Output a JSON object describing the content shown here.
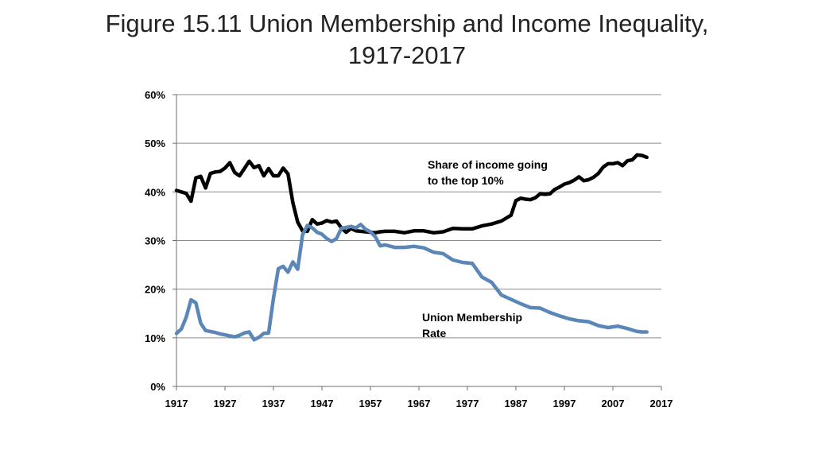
{
  "title": {
    "line1": "Figure 15.11 Union Membership and Income Inequality,",
    "line2": "1917-2017"
  },
  "colors": {
    "income_share": "#000000",
    "union_rate": "#5b86b8",
    "grid": "#8c8c8c",
    "axis": "#6e6e6e"
  },
  "chart_data": {
    "type": "line",
    "x_ticks": [
      "1917",
      "1927",
      "1937",
      "1947",
      "1957",
      "1967",
      "1977",
      "1987",
      "1997",
      "2007",
      "2017"
    ],
    "y_ticks": [
      "0%",
      "10%",
      "20%",
      "30%",
      "40%",
      "50%",
      "60%"
    ],
    "xlim": [
      1917,
      2017
    ],
    "ylim": [
      0,
      60
    ],
    "grid": "horizontal",
    "annotations": {
      "income_line1": "Share of income going",
      "income_line2": "to the top 10%",
      "union_line1": "Union Membership",
      "union_line2": "Rate"
    },
    "series": [
      {
        "key": "income_share",
        "x": [
          1917,
          1919,
          1920,
          1921,
          1922,
          1923,
          1924,
          1925,
          1926,
          1927,
          1928,
          1929,
          1930,
          1931,
          1932,
          1933,
          1934,
          1935,
          1936,
          1937,
          1938,
          1939,
          1940,
          1941,
          1942,
          1943,
          1944,
          1945,
          1946,
          1947,
          1948,
          1949,
          1950,
          1951,
          1952,
          1953,
          1954,
          1955,
          1956,
          1957,
          1958,
          1959,
          1960,
          1962,
          1964,
          1966,
          1968,
          1970,
          1972,
          1974,
          1976,
          1978,
          1980,
          1982,
          1984,
          1986,
          1987,
          1988,
          1989,
          1990,
          1991,
          1992,
          1993,
          1994,
          1995,
          1996,
          1997,
          1998,
          1999,
          2000,
          2001,
          2002,
          2003,
          2004,
          2005,
          2006,
          2007,
          2008,
          2009,
          2010,
          2011,
          2012,
          2013,
          2014
        ],
        "y": [
          40.3,
          39.7,
          38.1,
          42.9,
          43.2,
          40.8,
          43.8,
          44.1,
          44.2,
          44.9,
          46.0,
          44.0,
          43.3,
          44.8,
          46.3,
          45.0,
          45.4,
          43.3,
          44.8,
          43.3,
          43.3,
          44.9,
          43.7,
          37.8,
          33.8,
          32.0,
          31.9,
          34.3,
          33.4,
          33.6,
          34.1,
          33.8,
          34.0,
          32.6,
          31.7,
          32.5,
          32.0,
          31.9,
          31.8,
          31.7,
          31.6,
          31.8,
          31.9,
          31.9,
          31.6,
          32.0,
          32.0,
          31.6,
          31.8,
          32.5,
          32.4,
          32.4,
          33.0,
          33.4,
          34.0,
          35.2,
          38.2,
          38.7,
          38.5,
          38.4,
          38.8,
          39.6,
          39.5,
          39.6,
          40.5,
          41.0,
          41.6,
          41.9,
          42.4,
          43.1,
          42.3,
          42.5,
          43.0,
          43.8,
          45.1,
          45.8,
          45.8,
          46.0,
          45.4,
          46.4,
          46.6,
          47.6,
          47.5,
          47.1
        ]
      },
      {
        "key": "union_rate",
        "x": [
          1917,
          1918,
          1919,
          1920,
          1921,
          1922,
          1923,
          1924,
          1925,
          1926,
          1927,
          1928,
          1929,
          1930,
          1931,
          1932,
          1933,
          1934,
          1935,
          1936,
          1937,
          1938,
          1939,
          1940,
          1941,
          1942,
          1943,
          1944,
          1945,
          1946,
          1947,
          1948,
          1949,
          1950,
          1951,
          1952,
          1953,
          1954,
          1955,
          1956,
          1957,
          1958,
          1959,
          1960,
          1962,
          1964,
          1966,
          1968,
          1970,
          1972,
          1974,
          1976,
          1978,
          1980,
          1982,
          1984,
          1986,
          1988,
          1990,
          1992,
          1994,
          1996,
          1998,
          2000,
          2002,
          2004,
          2006,
          2008,
          2010,
          2012,
          2013,
          2014
        ],
        "y": [
          10.9,
          11.8,
          14.2,
          17.8,
          17.2,
          13.0,
          11.5,
          11.3,
          11.1,
          10.8,
          10.6,
          10.4,
          10.2,
          10.5,
          11.0,
          11.2,
          9.6,
          10.1,
          10.9,
          11.0,
          18.1,
          24.2,
          24.7,
          23.5,
          25.6,
          24.1,
          31.2,
          33.1,
          32.6,
          31.7,
          31.3,
          30.4,
          29.8,
          30.4,
          32.5,
          32.7,
          32.9,
          32.6,
          33.3,
          32.3,
          31.8,
          30.8,
          28.9,
          29.1,
          28.6,
          28.6,
          28.8,
          28.5,
          27.6,
          27.3,
          26.0,
          25.5,
          25.3,
          22.5,
          21.4,
          18.8,
          17.9,
          17.0,
          16.2,
          16.1,
          15.2,
          14.5,
          13.9,
          13.5,
          13.3,
          12.5,
          12.1,
          12.4,
          11.9,
          11.3,
          11.2,
          11.2
        ]
      }
    ]
  }
}
